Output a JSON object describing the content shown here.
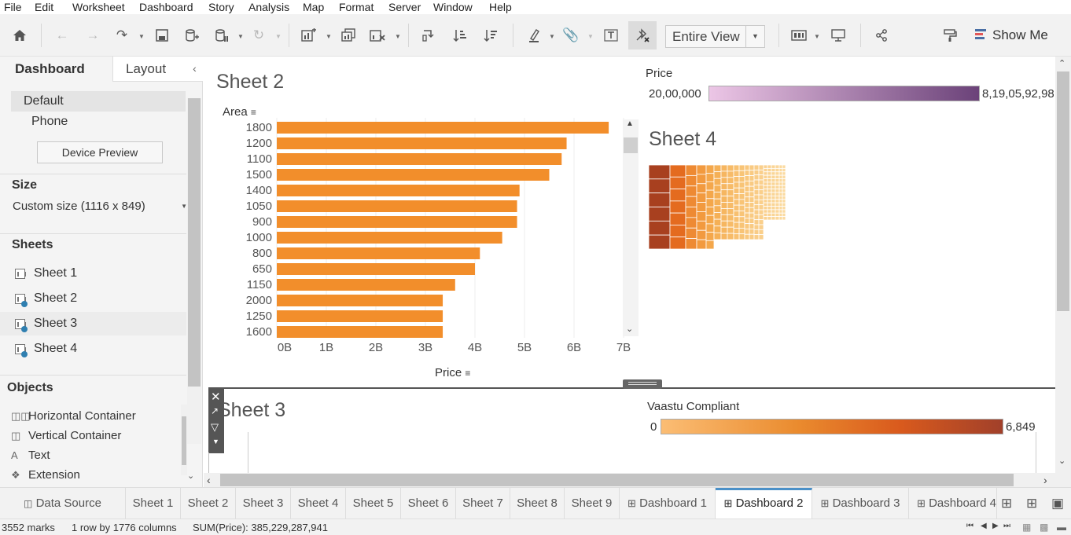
{
  "menu": [
    "File",
    "Edit",
    "Worksheet",
    "Dashboard",
    "Story",
    "Analysis",
    "Map",
    "Format",
    "Server",
    "Window",
    "Help"
  ],
  "toolbar": {
    "view_mode": "Entire View",
    "show_me": "Show Me"
  },
  "sidebar": {
    "tabs": [
      "Dashboard",
      "Layout"
    ],
    "devices": [
      "Default",
      "Phone"
    ],
    "device_preview": "Device Preview",
    "size_heading": "Size",
    "size_value": "Custom size (1116 x 849)",
    "sheets_heading": "Sheets",
    "sheets": [
      "Sheet 1",
      "Sheet 2",
      "Sheet 3",
      "Sheet 4"
    ],
    "objects_heading": "Objects",
    "objects": [
      "Horizontal Container",
      "Vertical Container",
      "Text",
      "Extension"
    ]
  },
  "sheet2": {
    "title": "Sheet 2",
    "row_header": "Area",
    "x_label": "Price"
  },
  "price_legend": {
    "title": "Price",
    "min": "20,00,000",
    "max": "8,19,05,92,98"
  },
  "sheet4": {
    "title": "Sheet 4"
  },
  "sheet3": {
    "title": "Sheet 3"
  },
  "vaastu_legend": {
    "title": "Vaastu Compliant",
    "min": "0",
    "max": "6,849"
  },
  "chart_data": {
    "type": "bar",
    "orientation": "horizontal",
    "categories": [
      "1800",
      "1200",
      "1100",
      "1500",
      "1400",
      "1050",
      "900",
      "1000",
      "800",
      "650",
      "1150",
      "2000",
      "1250",
      "1600"
    ],
    "values": [
      6.7,
      5.85,
      5.75,
      5.5,
      4.9,
      4.85,
      4.85,
      4.55,
      4.1,
      4.0,
      3.6,
      3.35,
      3.35,
      3.35
    ],
    "x_ticks": [
      "0B",
      "1B",
      "2B",
      "3B",
      "4B",
      "5B",
      "6B",
      "7B"
    ],
    "xlim": [
      0,
      7
    ],
    "xlabel": "Price",
    "ylabel": "Area",
    "bar_color": "#f28e2b",
    "grid": true
  },
  "bottom_tabs": [
    "Data Source",
    "Sheet 1",
    "Sheet 2",
    "Sheet 3",
    "Sheet 4",
    "Sheet 5",
    "Sheet 6",
    "Sheet 7",
    "Sheet 8",
    "Sheet 9",
    "Dashboard 1",
    "Dashboard 2",
    "Dashboard 3",
    "Dashboard 4"
  ],
  "status": {
    "marks": "3552 marks",
    "rows_cols": "1 row by 1776 columns",
    "sum": "SUM(Price): 385,229,287,941"
  },
  "colors": {
    "accent": "#4a90c8",
    "bar": "#f28e2b",
    "price_low": "#ecc6e6",
    "price_high": "#6b4279",
    "vaastu_low": "#fbbd74",
    "vaastu_high": "#a1402a"
  }
}
